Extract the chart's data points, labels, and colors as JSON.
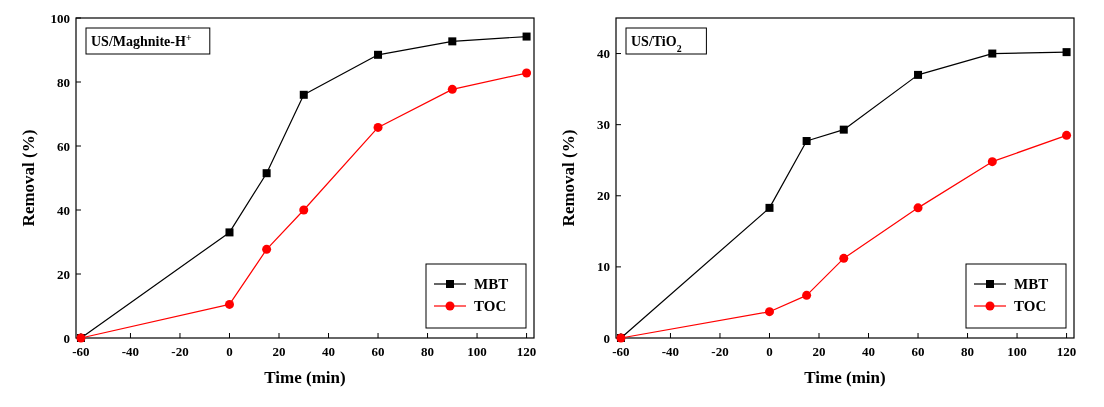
{
  "chart_data": [
    {
      "type": "line",
      "title": "US/Maghnite-H$^{+}$",
      "xlabel": "Time (min)",
      "ylabel": "Removal (%)",
      "x": [
        -60,
        0,
        15,
        30,
        60,
        90,
        120
      ],
      "xlim": [
        -62,
        123
      ],
      "ylim": [
        0,
        100
      ],
      "xticks": [
        -60,
        -40,
        -20,
        0,
        20,
        40,
        60,
        80,
        100,
        120
      ],
      "yticks": [
        0,
        20,
        40,
        60,
        80,
        100
      ],
      "legend": "bottom right",
      "series": [
        {
          "name": "MBT",
          "color": "#000000",
          "marker": "square",
          "values": [
            0,
            33,
            51.5,
            76,
            88.5,
            92.7,
            94.2
          ]
        },
        {
          "name": "TOC",
          "color": "#ff0000",
          "marker": "circle",
          "values": [
            0,
            10.5,
            27.7,
            40,
            65.8,
            77.7,
            82.8
          ]
        }
      ]
    },
    {
      "type": "line",
      "title": "US/TiO$_{2}$",
      "xlabel": "Time (min)",
      "ylabel": "Removal (%)",
      "x": [
        -60,
        0,
        15,
        30,
        60,
        90,
        120
      ],
      "xlim": [
        -62,
        123
      ],
      "ylim": [
        0,
        45
      ],
      "xticks": [
        -60,
        -40,
        -20,
        0,
        20,
        40,
        60,
        80,
        100,
        120
      ],
      "yticks": [
        0,
        10,
        20,
        30,
        40
      ],
      "legend": "bottom right",
      "series": [
        {
          "name": "MBT",
          "color": "#000000",
          "marker": "square",
          "values": [
            0,
            18.3,
            27.7,
            29.3,
            37,
            40,
            40.2
          ]
        },
        {
          "name": "TOC",
          "color": "#ff0000",
          "marker": "circle",
          "values": [
            0,
            3.7,
            6,
            11.2,
            18.3,
            24.8,
            28.5
          ]
        }
      ]
    }
  ]
}
